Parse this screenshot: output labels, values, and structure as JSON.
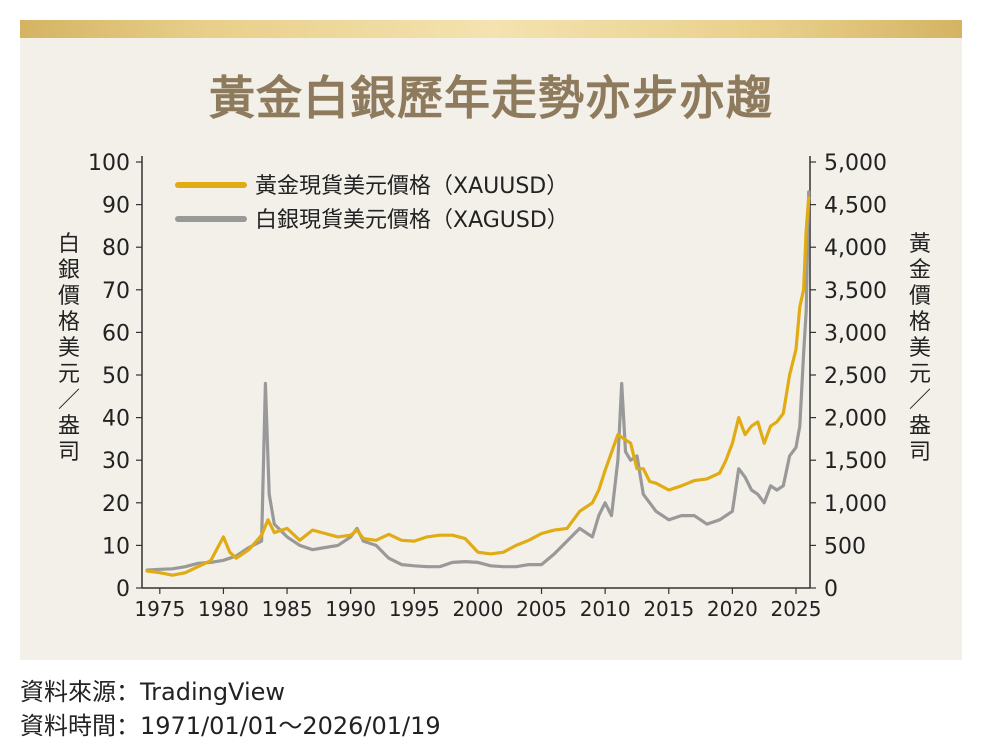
{
  "title": "黃金白銀歷年走勢亦步亦趨",
  "source_line": "資料來源：TradingView",
  "period_line": "資料時間：1971/01/01～2026/01/19",
  "colors": {
    "gold": "#e1ab14",
    "silver": "#999999",
    "title": "#8e7b5d",
    "panel": "#f3f0e9"
  },
  "chart_data": {
    "type": "line",
    "x_ticks": [
      "1975",
      "1980",
      "1985",
      "1990",
      "1995",
      "2000",
      "2005",
      "2010",
      "2015",
      "2020",
      "2025"
    ],
    "left_axis": {
      "label": "白銀價格 美元／盎司",
      "ticks": [
        "0",
        "10",
        "20",
        "30",
        "40",
        "50",
        "60",
        "70",
        "80",
        "90",
        "100"
      ],
      "ylim": [
        0,
        100
      ]
    },
    "right_axis": {
      "label": "黃金價格 美元／盎司",
      "ticks": [
        "0",
        "500",
        "1,000",
        "1,500",
        "2,000",
        "2,500",
        "3,000",
        "3,500",
        "4,000",
        "4,500",
        "5,000"
      ],
      "ylim": [
        0,
        5000
      ]
    },
    "xlim": [
      1973.6,
      2026.1
    ],
    "legend_position": "top-left",
    "series": [
      {
        "name": "黃金現貨美元價格（XAUUSD）",
        "axis": "right",
        "color": "#e1ab14",
        "points": [
          [
            1974,
            200
          ],
          [
            1975,
            180
          ],
          [
            1976,
            150
          ],
          [
            1977,
            180
          ],
          [
            1978,
            250
          ],
          [
            1979,
            320
          ],
          [
            1980,
            600
          ],
          [
            1980.5,
            420
          ],
          [
            1981,
            350
          ],
          [
            1982,
            450
          ],
          [
            1983,
            620
          ],
          [
            1983.5,
            800
          ],
          [
            1984,
            650
          ],
          [
            1985,
            700
          ],
          [
            1986,
            560
          ],
          [
            1987,
            680
          ],
          [
            1988,
            640
          ],
          [
            1989,
            600
          ],
          [
            1990,
            620
          ],
          [
            1990.5,
            680
          ],
          [
            1991,
            580
          ],
          [
            1992,
            560
          ],
          [
            1993,
            630
          ],
          [
            1994,
            560
          ],
          [
            1995,
            550
          ],
          [
            1996,
            600
          ],
          [
            1997,
            620
          ],
          [
            1998,
            620
          ],
          [
            1999,
            580
          ],
          [
            2000,
            420
          ],
          [
            2001,
            400
          ],
          [
            2002,
            420
          ],
          [
            2003,
            500
          ],
          [
            2004,
            560
          ],
          [
            2005,
            640
          ],
          [
            2006,
            680
          ],
          [
            2007,
            700
          ],
          [
            2008,
            900
          ],
          [
            2009,
            1000
          ],
          [
            2009.5,
            1150
          ],
          [
            2010,
            1380
          ],
          [
            2011,
            1800
          ],
          [
            2011.5,
            1750
          ],
          [
            2012,
            1700
          ],
          [
            2012.5,
            1400
          ],
          [
            2013,
            1400
          ],
          [
            2013.5,
            1250
          ],
          [
            2014,
            1230
          ],
          [
            2015,
            1150
          ],
          [
            2016,
            1200
          ],
          [
            2017,
            1260
          ],
          [
            2018,
            1280
          ],
          [
            2019,
            1350
          ],
          [
            2019.5,
            1500
          ],
          [
            2020,
            1700
          ],
          [
            2020.5,
            2000
          ],
          [
            2021,
            1800
          ],
          [
            2021.5,
            1900
          ],
          [
            2022,
            1950
          ],
          [
            2022.5,
            1700
          ],
          [
            2023,
            1900
          ],
          [
            2023.5,
            1950
          ],
          [
            2024,
            2050
          ],
          [
            2024.5,
            2500
          ],
          [
            2025,
            2800
          ],
          [
            2025.3,
            3300
          ],
          [
            2025.6,
            3500
          ],
          [
            2025.8,
            4200
          ],
          [
            2026,
            4580
          ]
        ]
      },
      {
        "name": "白銀現貨美元價格（XAGUSD）",
        "axis": "left",
        "color": "#999999",
        "points": [
          [
            1974,
            4.2
          ],
          [
            1975,
            4.4
          ],
          [
            1976,
            4.5
          ],
          [
            1977,
            5
          ],
          [
            1978,
            5.8
          ],
          [
            1979,
            6
          ],
          [
            1980,
            6.5
          ],
          [
            1980.5,
            7
          ],
          [
            1981,
            7.5
          ],
          [
            1982,
            9.5
          ],
          [
            1983,
            11
          ],
          [
            1983.3,
            48
          ],
          [
            1983.6,
            22
          ],
          [
            1984,
            15
          ],
          [
            1985,
            12
          ],
          [
            1986,
            10
          ],
          [
            1987,
            9
          ],
          [
            1988,
            9.5
          ],
          [
            1989,
            10
          ],
          [
            1990,
            12
          ],
          [
            1990.5,
            14
          ],
          [
            1991,
            11
          ],
          [
            1992,
            10
          ],
          [
            1993,
            7
          ],
          [
            1994,
            5.5
          ],
          [
            1995,
            5.2
          ],
          [
            1996,
            5
          ],
          [
            1997,
            5
          ],
          [
            1998,
            6
          ],
          [
            1999,
            6.2
          ],
          [
            2000,
            6
          ],
          [
            2001,
            5.2
          ],
          [
            2002,
            5
          ],
          [
            2003,
            5
          ],
          [
            2004,
            5.5
          ],
          [
            2005,
            5.5
          ],
          [
            2006,
            8
          ],
          [
            2007,
            11
          ],
          [
            2008,
            14
          ],
          [
            2009,
            12
          ],
          [
            2009.5,
            17
          ],
          [
            2010,
            20
          ],
          [
            2010.5,
            17
          ],
          [
            2011,
            30
          ],
          [
            2011.3,
            48
          ],
          [
            2011.6,
            32
          ],
          [
            2012,
            30
          ],
          [
            2012.5,
            31
          ],
          [
            2013,
            22
          ],
          [
            2013.5,
            20
          ],
          [
            2014,
            18
          ],
          [
            2015,
            16
          ],
          [
            2016,
            17
          ],
          [
            2017,
            17
          ],
          [
            2018,
            15
          ],
          [
            2019,
            16
          ],
          [
            2019.5,
            17
          ],
          [
            2020,
            18
          ],
          [
            2020.5,
            28
          ],
          [
            2021,
            26
          ],
          [
            2021.5,
            23
          ],
          [
            2022,
            22
          ],
          [
            2022.5,
            20
          ],
          [
            2023,
            24
          ],
          [
            2023.5,
            23
          ],
          [
            2024,
            24
          ],
          [
            2024.5,
            31
          ],
          [
            2025,
            33
          ],
          [
            2025.3,
            38
          ],
          [
            2025.6,
            55
          ],
          [
            2025.8,
            65
          ],
          [
            2026,
            93
          ]
        ]
      }
    ]
  }
}
